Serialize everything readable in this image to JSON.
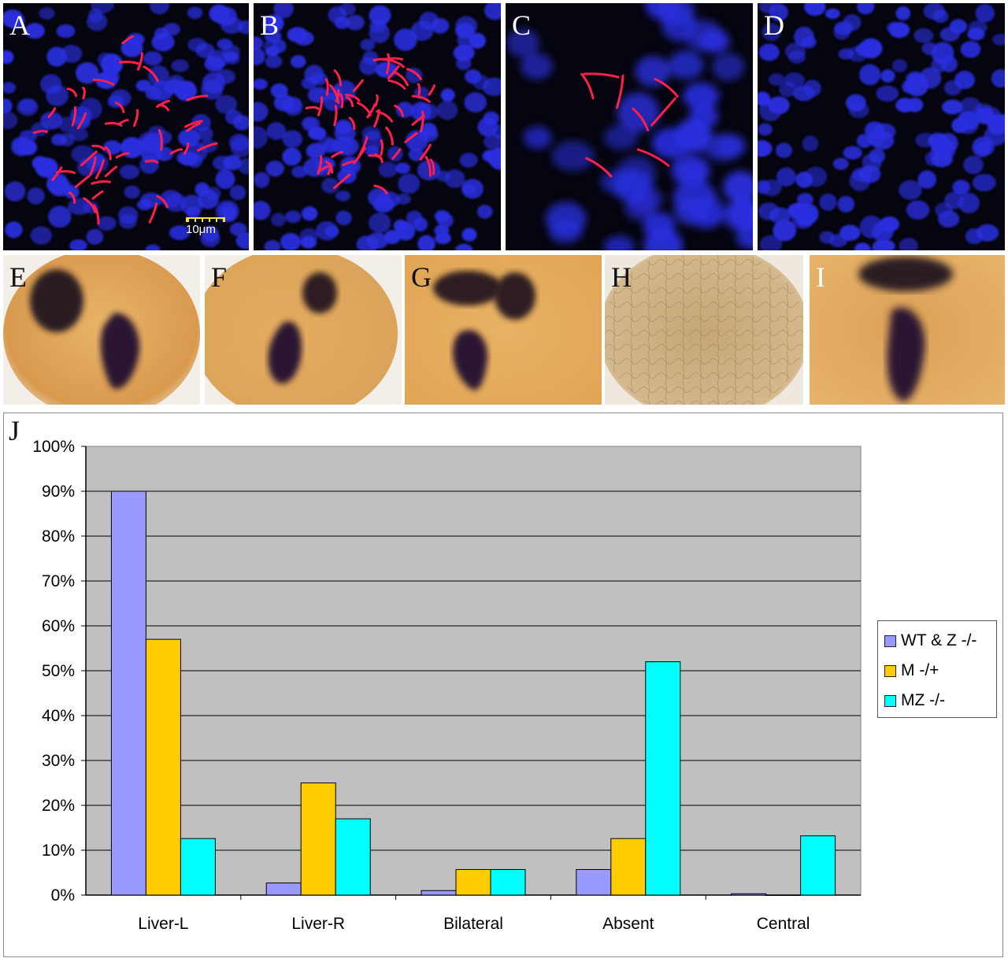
{
  "panels": {
    "A": {
      "label": "A",
      "scale_bar": "10μm"
    },
    "B": {
      "label": "B"
    },
    "C": {
      "label": "C"
    },
    "D": {
      "label": "D"
    },
    "E": {
      "label": "E"
    },
    "F": {
      "label": "F"
    },
    "G": {
      "label": "G"
    },
    "H": {
      "label": "H"
    },
    "I": {
      "label": "I"
    },
    "J": {
      "label": "J"
    }
  },
  "colors": {
    "nuclei": "#2a2fe0",
    "cilia": "#ff1f4b",
    "embryo": "#e3a85a",
    "stain": "#2a1430"
  },
  "chart_data": {
    "type": "bar",
    "categories": [
      "Liver-L",
      "Liver-R",
      "Bilateral",
      "Absent",
      "Central"
    ],
    "series": [
      {
        "name": "WT & Z -/-",
        "color": "#9999ff",
        "values": [
          90,
          2.7,
          1,
          5.7,
          0.3
        ]
      },
      {
        "name": "M -/+",
        "color": "#ffcc00",
        "values": [
          57,
          25,
          5.7,
          12.6,
          0
        ]
      },
      {
        "name": "MZ -/-",
        "color": "#00ffff",
        "values": [
          12.6,
          17,
          5.7,
          52,
          13.2
        ]
      }
    ],
    "y_ticks": [
      "0%",
      "10%",
      "20%",
      "30%",
      "40%",
      "50%",
      "60%",
      "70%",
      "80%",
      "90%",
      "100%"
    ],
    "ylim": [
      0,
      100
    ],
    "grid": true,
    "plot_background": "#c0c0c0",
    "legend_position": "right"
  }
}
